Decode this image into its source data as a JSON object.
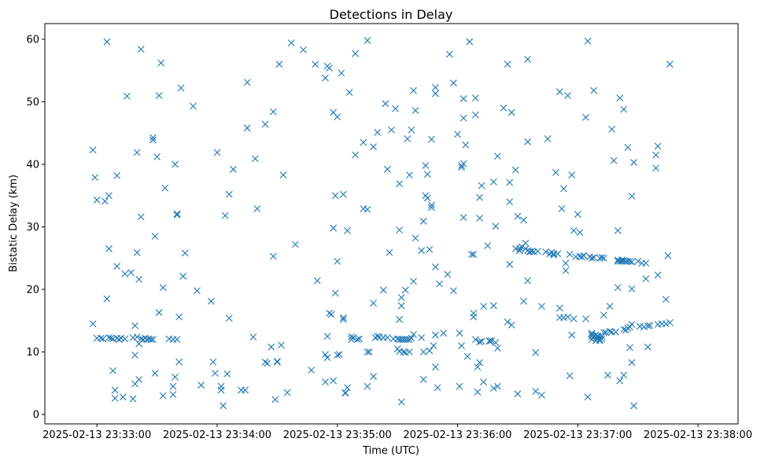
{
  "chart_data": {
    "type": "scatter",
    "title": "Detections in Delay",
    "xlabel": "Time (UTC)",
    "ylabel": "Bistatic Delay (km)",
    "x_tick_labels": [
      "2025-02-13 23:33:00",
      "2025-02-13 23:34:00",
      "2025-02-13 23:35:00",
      "2025-02-13 23:36:00",
      "2025-02-13 23:37:00",
      "2025-02-13 23:38:00"
    ],
    "x_ticks_seconds": [
      0,
      60,
      120,
      180,
      240,
      300
    ],
    "y_ticks": [
      0,
      10,
      20,
      30,
      40,
      50,
      60
    ],
    "xlim_seconds": [
      -26,
      320
    ],
    "ylim": [
      -1.5,
      62.5
    ],
    "grid": false,
    "marker": "x",
    "color": "#1f77b4",
    "points_seconds_km": [
      [
        -2,
        14.5
      ],
      [
        -2,
        42.3
      ],
      [
        -1,
        37.9
      ],
      [
        0,
        34.3
      ],
      [
        0,
        12.2
      ],
      [
        2,
        12.2
      ],
      [
        3,
        12.1
      ],
      [
        4,
        34.1
      ],
      [
        5,
        59.6
      ],
      [
        5,
        18.5
      ],
      [
        6,
        26.5
      ],
      [
        6,
        35.0
      ],
      [
        6,
        12.3
      ],
      [
        7,
        12.2
      ],
      [
        8,
        12.1
      ],
      [
        8,
        7.0
      ],
      [
        9,
        3.9
      ],
      [
        9,
        2.6
      ],
      [
        10,
        12.2
      ],
      [
        10,
        38.2
      ],
      [
        10,
        23.7
      ],
      [
        11,
        12.0
      ],
      [
        12,
        12.2
      ],
      [
        13,
        2.8
      ],
      [
        14,
        22.5
      ],
      [
        14,
        12.1
      ],
      [
        15,
        50.9
      ],
      [
        17,
        22.7
      ],
      [
        18,
        2.5
      ],
      [
        18,
        12.3
      ],
      [
        19,
        14.2
      ],
      [
        19,
        9.5
      ],
      [
        19,
        4.9
      ],
      [
        20,
        41.9
      ],
      [
        20,
        25.9
      ],
      [
        20,
        12.4
      ],
      [
        21,
        5.6
      ],
      [
        21,
        11.3
      ],
      [
        21,
        21.6
      ],
      [
        22,
        58.4
      ],
      [
        22,
        31.6
      ],
      [
        22,
        12.1
      ],
      [
        23,
        12.0
      ],
      [
        24,
        12.2
      ],
      [
        25,
        12.0
      ],
      [
        26,
        12.1
      ],
      [
        27,
        12.0
      ],
      [
        28,
        12.0
      ],
      [
        28,
        44.3
      ],
      [
        28,
        43.9
      ],
      [
        29,
        28.5
      ],
      [
        29,
        6.6
      ],
      [
        30,
        41.2
      ],
      [
        31,
        51.0
      ],
      [
        31,
        16.3
      ],
      [
        32,
        56.2
      ],
      [
        33,
        20.3
      ],
      [
        33,
        3.0
      ],
      [
        34,
        36.2
      ],
      [
        36,
        12.1
      ],
      [
        38,
        12.0
      ],
      [
        38,
        4.5
      ],
      [
        38,
        3.2
      ],
      [
        39,
        40.0
      ],
      [
        39,
        6.0
      ],
      [
        40,
        32.1
      ],
      [
        40,
        31.9
      ],
      [
        40,
        12.0
      ],
      [
        41,
        15.6
      ],
      [
        41,
        8.4
      ],
      [
        42,
        52.2
      ],
      [
        43,
        22.1
      ],
      [
        44,
        25.8
      ],
      [
        48,
        49.3
      ],
      [
        50,
        19.8
      ],
      [
        52,
        4.7
      ],
      [
        57,
        18.1
      ],
      [
        58,
        8.4
      ],
      [
        59,
        6.6
      ],
      [
        60,
        41.9
      ],
      [
        62,
        4.5
      ],
      [
        62,
        3.9
      ],
      [
        63,
        1.4
      ],
      [
        64,
        31.8
      ],
      [
        65,
        6.5
      ],
      [
        66,
        35.2
      ],
      [
        66,
        15.4
      ],
      [
        68,
        39.2
      ],
      [
        72,
        3.9
      ],
      [
        74,
        3.9
      ],
      [
        75,
        53.1
      ],
      [
        75,
        45.8
      ],
      [
        78,
        12.4
      ],
      [
        79,
        40.9
      ],
      [
        80,
        32.9
      ],
      [
        84,
        46.4
      ],
      [
        84,
        8.4
      ],
      [
        85,
        8.2
      ],
      [
        87,
        10.8
      ],
      [
        88,
        48.4
      ],
      [
        88,
        25.3
      ],
      [
        89,
        2.4
      ],
      [
        90,
        8.5
      ],
      [
        90,
        8.4
      ],
      [
        91,
        56.0
      ],
      [
        92,
        11.1
      ],
      [
        93,
        38.3
      ],
      [
        95,
        3.5
      ],
      [
        97,
        59.4
      ],
      [
        99,
        27.2
      ],
      [
        103,
        58.3
      ],
      [
        107,
        7.1
      ],
      [
        109,
        56.0
      ],
      [
        110,
        21.4
      ],
      [
        114,
        53.8
      ],
      [
        114,
        9.6
      ],
      [
        114,
        5.2
      ],
      [
        115,
        55.7
      ],
      [
        115,
        12.5
      ],
      [
        115,
        9.1
      ],
      [
        116,
        55.4
      ],
      [
        116,
        16.2
      ],
      [
        117,
        16.0
      ],
      [
        118,
        48.3
      ],
      [
        118,
        29.8
      ],
      [
        118,
        5.4
      ],
      [
        119,
        35.0
      ],
      [
        119,
        19.4
      ],
      [
        120,
        47.6
      ],
      [
        120,
        24.5
      ],
      [
        120,
        9.5
      ],
      [
        121,
        9.6
      ],
      [
        122,
        54.6
      ],
      [
        123,
        15.2
      ],
      [
        123,
        15.5
      ],
      [
        123,
        35.2
      ],
      [
        124,
        3.5
      ],
      [
        124,
        3.4
      ],
      [
        125,
        4.3
      ],
      [
        125,
        29.4
      ],
      [
        126,
        51.5
      ],
      [
        127,
        12.4
      ],
      [
        127,
        12.0
      ],
      [
        128,
        12.3
      ],
      [
        129,
        41.5
      ],
      [
        129,
        57.7
      ],
      [
        130,
        12.0
      ],
      [
        131,
        12.1
      ],
      [
        133,
        43.5
      ],
      [
        133,
        32.9
      ],
      [
        135,
        59.8
      ],
      [
        135,
        32.8
      ],
      [
        135,
        10.0
      ],
      [
        135,
        4.5
      ],
      [
        136,
        10.0
      ],
      [
        138,
        17.8
      ],
      [
        138,
        42.8
      ],
      [
        138,
        6.1
      ],
      [
        139,
        12.3
      ],
      [
        140,
        12.5
      ],
      [
        140,
        45.1
      ],
      [
        141,
        12.4
      ],
      [
        143,
        19.9
      ],
      [
        143,
        12.3
      ],
      [
        144,
        49.7
      ],
      [
        145,
        39.2
      ],
      [
        145,
        12.3
      ],
      [
        146,
        25.9
      ],
      [
        147,
        45.5
      ],
      [
        148,
        12.1
      ],
      [
        149,
        48.9
      ],
      [
        150,
        12.1
      ],
      [
        150,
        10.5
      ],
      [
        151,
        12.0
      ],
      [
        151,
        36.9
      ],
      [
        151,
        29.5
      ],
      [
        151,
        15.2
      ],
      [
        151,
        10.1
      ],
      [
        152,
        12.0
      ],
      [
        152,
        18.7
      ],
      [
        152,
        17.4
      ],
      [
        152,
        2.0
      ],
      [
        153,
        12.0
      ],
      [
        153,
        10.0
      ],
      [
        154,
        12.0
      ],
      [
        154,
        19.9
      ],
      [
        154,
        9.9
      ],
      [
        155,
        44.1
      ],
      [
        155,
        12.0
      ],
      [
        156,
        38.3
      ],
      [
        156,
        10.0
      ],
      [
        156,
        12.0
      ],
      [
        157,
        45.5
      ],
      [
        157,
        12.2
      ],
      [
        158,
        51.8
      ],
      [
        158,
        21.3
      ],
      [
        158,
        12.8
      ],
      [
        159,
        48.6
      ],
      [
        159,
        28.2
      ],
      [
        162,
        26.2
      ],
      [
        162,
        12.3
      ],
      [
        163,
        30.9
      ],
      [
        163,
        5.6
      ],
      [
        163,
        10.0
      ],
      [
        164,
        39.8
      ],
      [
        164,
        35.0
      ],
      [
        165,
        38.4
      ],
      [
        165,
        34.6
      ],
      [
        166,
        26.4
      ],
      [
        166,
        10.2
      ],
      [
        167,
        44.0
      ],
      [
        167,
        33.5
      ],
      [
        167,
        33.1
      ],
      [
        168,
        11.0
      ],
      [
        169,
        52.3
      ],
      [
        169,
        51.3
      ],
      [
        169,
        23.6
      ],
      [
        169,
        12.7
      ],
      [
        169,
        7.6
      ],
      [
        170,
        4.3
      ],
      [
        171,
        20.9
      ],
      [
        173,
        13.0
      ],
      [
        175,
        22.4
      ],
      [
        176,
        57.6
      ],
      [
        178,
        53.0
      ],
      [
        178,
        19.8
      ],
      [
        180,
        44.8
      ],
      [
        181,
        13.0
      ],
      [
        181,
        4.5
      ],
      [
        182,
        39.5
      ],
      [
        182,
        11.0
      ],
      [
        182,
        39.8
      ],
      [
        183,
        50.5
      ],
      [
        183,
        47.4
      ],
      [
        183,
        40.1
      ],
      [
        183,
        31.5
      ],
      [
        184,
        43.1
      ],
      [
        185,
        9.3
      ],
      [
        186,
        59.6
      ],
      [
        187,
        25.6
      ],
      [
        188,
        25.6
      ],
      [
        188,
        16.2
      ],
      [
        188,
        15.6
      ],
      [
        189,
        47.9
      ],
      [
        189,
        50.6
      ],
      [
        189,
        12.0
      ],
      [
        190,
        7.6
      ],
      [
        190,
        3.6
      ],
      [
        191,
        34.7
      ],
      [
        191,
        31.4
      ],
      [
        191,
        11.6
      ],
      [
        191,
        8.3
      ],
      [
        192,
        36.6
      ],
      [
        192,
        11.7
      ],
      [
        193,
        5.2
      ],
      [
        193,
        17.3
      ],
      [
        195,
        27.0
      ],
      [
        196,
        11.8
      ],
      [
        196,
        11.7
      ],
      [
        197,
        11.8
      ],
      [
        198,
        17.4
      ],
      [
        198,
        37.2
      ],
      [
        198,
        4.2
      ],
      [
        199,
        30.1
      ],
      [
        199,
        11.5
      ],
      [
        200,
        41.3
      ],
      [
        200,
        10.6
      ],
      [
        200,
        4.5
      ],
      [
        203,
        49.0
      ],
      [
        205,
        14.8
      ],
      [
        205,
        56.0
      ],
      [
        206,
        24.0
      ],
      [
        206,
        37.1
      ],
      [
        206,
        34.0
      ],
      [
        207,
        48.3
      ],
      [
        207,
        14.3
      ],
      [
        209,
        39.1
      ],
      [
        209,
        26.5
      ],
      [
        210,
        3.3
      ],
      [
        210,
        31.7
      ],
      [
        211,
        26.2
      ],
      [
        211,
        26.2
      ],
      [
        211,
        26.6
      ],
      [
        212,
        26.8
      ],
      [
        213,
        31.1
      ],
      [
        213,
        18.1
      ],
      [
        214,
        27.4
      ],
      [
        214,
        26.5
      ],
      [
        215,
        26.2
      ],
      [
        215,
        21.4
      ],
      [
        215,
        43.6
      ],
      [
        215,
        56.8
      ],
      [
        216,
        26.0
      ],
      [
        216,
        26.0
      ],
      [
        217,
        26.1
      ],
      [
        218,
        26.0
      ],
      [
        219,
        3.7
      ],
      [
        219,
        9.9
      ],
      [
        220,
        26.1
      ],
      [
        222,
        17.3
      ],
      [
        222,
        3.1
      ],
      [
        224,
        26.0
      ],
      [
        225,
        44.1
      ],
      [
        226,
        25.7
      ],
      [
        227,
        25.9
      ],
      [
        228,
        25.5
      ],
      [
        228,
        25.7
      ],
      [
        229,
        38.7
      ],
      [
        230,
        25.7
      ],
      [
        231,
        51.6
      ],
      [
        231,
        17.0
      ],
      [
        231,
        15.5
      ],
      [
        232,
        32.9
      ],
      [
        233,
        15.5
      ],
      [
        233,
        36.1
      ],
      [
        234,
        24.2
      ],
      [
        234,
        23.0
      ],
      [
        235,
        51.0
      ],
      [
        235,
        15.6
      ],
      [
        236,
        6.2
      ],
      [
        236,
        25.6
      ],
      [
        237,
        38.3
      ],
      [
        237,
        12.7
      ],
      [
        238,
        29.4
      ],
      [
        238,
        15.3
      ],
      [
        239,
        25.2
      ],
      [
        240,
        32.0
      ],
      [
        241,
        29.1
      ],
      [
        241,
        25.3
      ],
      [
        242,
        25.2
      ],
      [
        243,
        25.4
      ],
      [
        244,
        47.5
      ],
      [
        244,
        15.3
      ],
      [
        245,
        2.8
      ],
      [
        245,
        59.7
      ],
      [
        246,
        25.2
      ],
      [
        247,
        25.0
      ],
      [
        247,
        12.8
      ],
      [
        247,
        13.0
      ],
      [
        247,
        12.5
      ],
      [
        247,
        12.0
      ],
      [
        248,
        51.8
      ],
      [
        248,
        25.1
      ],
      [
        248,
        12.5
      ],
      [
        249,
        11.8
      ],
      [
        249,
        12.2
      ],
      [
        249,
        12.7
      ],
      [
        250,
        12.6
      ],
      [
        250,
        12.1
      ],
      [
        250,
        12.4
      ],
      [
        251,
        25.0
      ],
      [
        251,
        12.0
      ],
      [
        251,
        11.8
      ],
      [
        252,
        25.1
      ],
      [
        252,
        12.5
      ],
      [
        252,
        12.1
      ],
      [
        253,
        13.1
      ],
      [
        253,
        15.9
      ],
      [
        253,
        25.0
      ],
      [
        254,
        13.1
      ],
      [
        255,
        6.3
      ],
      [
        256,
        13.3
      ],
      [
        256,
        17.3
      ],
      [
        257,
        13.2
      ],
      [
        257,
        45.6
      ],
      [
        258,
        40.6
      ],
      [
        259,
        13.2
      ],
      [
        260,
        29.4
      ],
      [
        260,
        24.7
      ],
      [
        260,
        20.3
      ],
      [
        260,
        24.5
      ],
      [
        261,
        50.6
      ],
      [
        261,
        24.5
      ],
      [
        261,
        5.4
      ],
      [
        262,
        24.7
      ],
      [
        262,
        24.5
      ],
      [
        263,
        48.8
      ],
      [
        263,
        24.6
      ],
      [
        263,
        13.6
      ],
      [
        263,
        6.3
      ],
      [
        264,
        24.5
      ],
      [
        264,
        13.5
      ],
      [
        265,
        24.5
      ],
      [
        265,
        42.7
      ],
      [
        265,
        13.8
      ],
      [
        266,
        24.5
      ],
      [
        266,
        14.0
      ],
      [
        266,
        10.7
      ],
      [
        267,
        24.4
      ],
      [
        267,
        34.9
      ],
      [
        267,
        14.4
      ],
      [
        267,
        20.1
      ],
      [
        267,
        8.3
      ],
      [
        268,
        1.4
      ],
      [
        268,
        40.3
      ],
      [
        270,
        24.5
      ],
      [
        271,
        14.1
      ],
      [
        272,
        24.2
      ],
      [
        273,
        14.0
      ],
      [
        274,
        24.2
      ],
      [
        274,
        21.7
      ],
      [
        275,
        14.2
      ],
      [
        275,
        10.8
      ],
      [
        276,
        14.2
      ],
      [
        279,
        41.5
      ],
      [
        279,
        39.4
      ],
      [
        280,
        42.9
      ],
      [
        280,
        22.3
      ],
      [
        280,
        14.4
      ],
      [
        282,
        14.5
      ],
      [
        284,
        14.5
      ],
      [
        284,
        18.4
      ],
      [
        285,
        25.4
      ],
      [
        286,
        56.0
      ],
      [
        286,
        14.7
      ]
    ]
  }
}
